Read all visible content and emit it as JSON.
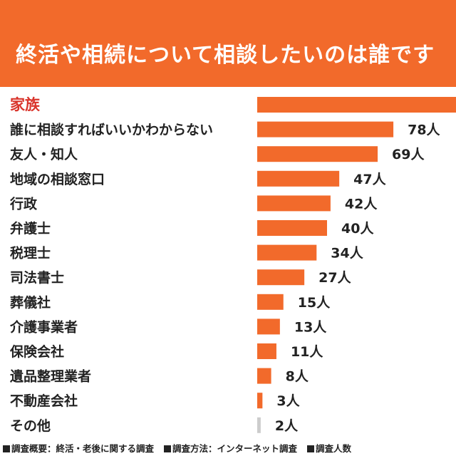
{
  "header": {
    "title": "終活や相続について相談したいのは誰です"
  },
  "chart_data": {
    "type": "bar",
    "orientation": "horizontal",
    "title": "終活や相続について相談したいのは誰です",
    "categories": [
      "家族",
      "誰に相談すればいいかわからない",
      "友人・知人",
      "地域の相談窓口",
      "行政",
      "弁護士",
      "税理士",
      "司法書士",
      "葬儀社",
      "介護事業者",
      "保険会社",
      "遺品整理業者",
      "不動産会社",
      "その他"
    ],
    "values": [
      null,
      78,
      69,
      47,
      42,
      40,
      34,
      27,
      15,
      13,
      11,
      8,
      3,
      2
    ],
    "value_labels": [
      "",
      "78人",
      "69人",
      "47人",
      "42人",
      "40人",
      "34人",
      "27人",
      "15人",
      "13人",
      "11人",
      "8人",
      "3人",
      "2人"
    ],
    "highlight_category": "家族",
    "colors": {
      "bar": "#f26a2b",
      "bar_small": "#cccccc",
      "highlight_text": "#d9342b"
    }
  },
  "footer": {
    "items": [
      "調査概要：終活・老後に関する調査",
      "調査方法：インターネット調査",
      "調査人数"
    ]
  }
}
